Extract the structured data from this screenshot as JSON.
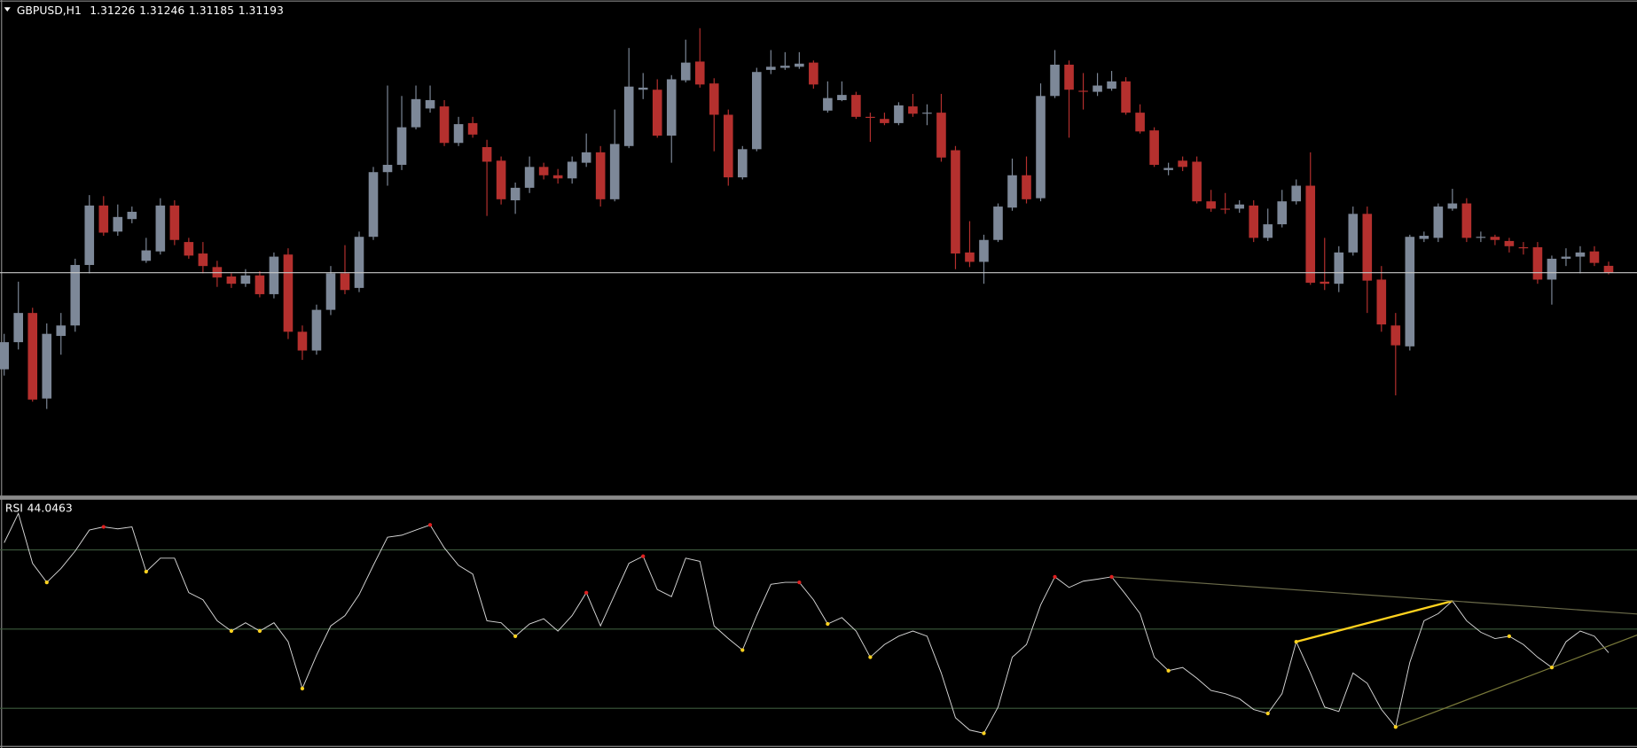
{
  "chart_data": [
    {
      "type": "candlestick",
      "title": "GBPUSD,H1",
      "up_color": "#7d8898",
      "down_color": "#b5302e",
      "bid_line_color": "#c8c8c8",
      "ylim": [
        1.30125,
        1.325
      ],
      "open": [
        1.3073,
        1.3086,
        1.31,
        1.3059,
        1.3089,
        1.3094,
        1.3123,
        1.31515,
        1.3139,
        1.3145,
        1.3125,
        1.31295,
        1.31515,
        1.3134,
        1.31285,
        1.3122,
        1.31175,
        1.3114,
        1.3118,
        1.3109,
        1.3128,
        1.3091,
        1.3082,
        1.31015,
        1.3119,
        1.3112,
        1.31365,
        1.31675,
        1.3171,
        1.3189,
        1.3198,
        1.3199,
        1.31815,
        1.3191,
        1.31795,
        1.3173,
        1.3154,
        1.316,
        1.317,
        1.3166,
        1.31645,
        1.3172,
        1.3177,
        1.31545,
        1.318,
        1.3207,
        1.3207,
        1.3185,
        1.32115,
        1.32205,
        1.321,
        1.3195,
        1.3165,
        1.31785,
        1.32165,
        1.32175,
        1.3218,
        1.322,
        1.3197,
        1.3202,
        1.32045,
        1.3194,
        1.3193,
        1.3191,
        1.3199,
        1.31955,
        1.3196,
        1.3178,
        1.3129,
        1.31245,
        1.3135,
        1.31505,
        1.3166,
        1.3155,
        1.3204,
        1.3219,
        1.32065,
        1.3206,
        1.32075,
        1.3211,
        1.3196,
        1.31875,
        1.31685,
        1.3173,
        1.31725,
        1.31535,
        1.315,
        1.315,
        1.31515,
        1.3136,
        1.31425,
        1.31535,
        1.3161,
        1.3115,
        1.3114,
        1.3129,
        1.31475,
        1.3116,
        1.3094,
        1.3084,
        1.31355,
        1.3136,
        1.315,
        1.31525,
        1.3136,
        1.31365,
        1.31345,
        1.31315,
        1.31315,
        1.3116,
        1.3126,
        1.3127,
        1.31295,
        1.31226
      ],
      "high": [
        1.309,
        1.3115,
        1.31025,
        1.3095,
        1.31,
        1.3126,
        1.31565,
        1.3156,
        1.3152,
        1.3151,
        1.3136,
        1.3155,
        1.3154,
        1.3136,
        1.3134,
        1.3125,
        1.3119,
        1.3121,
        1.312,
        1.3129,
        1.3131,
        1.3094,
        1.3104,
        1.31225,
        1.31325,
        1.3139,
        1.317,
        1.3209,
        1.3204,
        1.3209,
        1.3209,
        1.3202,
        1.3194,
        1.3194,
        1.3183,
        1.3175,
        1.31625,
        1.3175,
        1.3172,
        1.3169,
        1.3175,
        1.3186,
        1.318,
        1.31975,
        1.3227,
        1.3215,
        1.3212,
        1.3214,
        1.3231,
        1.32365,
        1.32125,
        1.31975,
        1.318,
        1.32175,
        1.3226,
        1.3225,
        1.3225,
        1.3221,
        1.3211,
        1.3211,
        1.3206,
        1.3196,
        1.3196,
        1.3201,
        1.3205,
        1.32,
        1.3205,
        1.318,
        1.3144,
        1.31375,
        1.31525,
        1.3174,
        1.3175,
        1.321,
        1.3226,
        1.3221,
        1.3215,
        1.3215,
        1.3216,
        1.3213,
        1.32,
        1.3189,
        1.3172,
        1.3175,
        1.3175,
        1.3159,
        1.31575,
        1.3154,
        1.3154,
        1.315,
        1.3159,
        1.3164,
        1.3177,
        1.3136,
        1.3132,
        1.3151,
        1.3151,
        1.31225,
        1.31,
        1.31375,
        1.3139,
        1.31525,
        1.31595,
        1.3155,
        1.3139,
        1.31375,
        1.3136,
        1.3134,
        1.3134,
        1.31275,
        1.3131,
        1.3132,
        1.3132,
        1.31246
      ],
      "low": [
        1.307,
        1.30825,
        1.30575,
        1.3054,
        1.308,
        1.3091,
        1.3119,
        1.3137,
        1.3137,
        1.3143,
        1.3124,
        1.3128,
        1.31325,
        1.3126,
        1.3119,
        1.31125,
        1.3112,
        1.31125,
        1.31075,
        1.3107,
        1.30875,
        1.30775,
        1.308,
        1.3099,
        1.3109,
        1.311,
        1.3135,
        1.3161,
        1.31685,
        1.3188,
        1.3196,
        1.318,
        1.318,
        1.3184,
        1.31465,
        1.3152,
        1.31475,
        1.31575,
        1.3164,
        1.3162,
        1.3162,
        1.317,
        1.3151,
        1.31535,
        1.3179,
        1.32025,
        1.3184,
        1.3172,
        1.32105,
        1.3208,
        1.31775,
        1.3161,
        1.3164,
        1.31775,
        1.32145,
        1.32165,
        1.3217,
        1.32075,
        1.3196,
        1.32015,
        1.3193,
        1.3182,
        1.319,
        1.319,
        1.3194,
        1.319,
        1.31725,
        1.3121,
        1.3122,
        1.3114,
        1.3134,
        1.3149,
        1.31525,
        1.31535,
        1.3203,
        1.3184,
        1.31975,
        1.3204,
        1.32065,
        1.3195,
        1.3186,
        1.317,
        1.3166,
        1.3168,
        1.31525,
        1.31485,
        1.31475,
        1.3148,
        1.3134,
        1.31345,
        1.3141,
        1.3152,
        1.31135,
        1.3111,
        1.311,
        1.31275,
        1.31,
        1.3091,
        1.30605,
        1.3082,
        1.3134,
        1.3134,
        1.3149,
        1.3134,
        1.3134,
        1.31325,
        1.3129,
        1.3128,
        1.3114,
        1.3104,
        1.31225,
        1.3119,
        1.31225,
        1.31185
      ],
      "close": [
        1.3086,
        1.31,
        1.30585,
        1.309,
        1.3094,
        1.3123,
        1.31515,
        1.31385,
        1.3146,
        1.31485,
        1.313,
        1.31515,
        1.3135,
        1.31275,
        1.31225,
        1.3117,
        1.3114,
        1.3118,
        1.3109,
        1.3127,
        1.3091,
        1.3082,
        1.31015,
        1.3119,
        1.3111,
        1.31365,
        1.31675,
        1.3171,
        1.3189,
        1.32025,
        1.3202,
        1.31815,
        1.31905,
        1.31855,
        1.31725,
        1.31545,
        1.316,
        1.317,
        1.3166,
        1.31645,
        1.31725,
        1.3177,
        1.31545,
        1.3181,
        1.32085,
        1.3208,
        1.3185,
        1.3212,
        1.322,
        1.32095,
        1.3195,
        1.3165,
        1.31785,
        1.32155,
        1.3218,
        1.32185,
        1.32195,
        1.32095,
        1.3203,
        1.32045,
        1.3194,
        1.31935,
        1.3191,
        1.31995,
        1.31955,
        1.3196,
        1.31745,
        1.31285,
        1.31245,
        1.3135,
        1.3151,
        1.3166,
        1.31545,
        1.3204,
        1.3219,
        1.3207,
        1.3206,
        1.3209,
        1.3211,
        1.3196,
        1.3187,
        1.3171,
        1.31695,
        1.317,
        1.31535,
        1.315,
        1.31495,
        1.3152,
        1.3136,
        1.31425,
        1.31535,
        1.3161,
        1.31145,
        1.3114,
        1.3129,
        1.31475,
        1.31155,
        1.30945,
        1.30845,
        1.31365,
        1.3137,
        1.3151,
        1.31525,
        1.3136,
        1.31365,
        1.3135,
        1.3132,
        1.3131,
        1.3116,
        1.3126,
        1.3127,
        1.3129,
        1.3124,
        1.31193
      ]
    },
    {
      "type": "line",
      "title": "RSI",
      "color": "#d8d8d8",
      "level_color": "#3c5a3c",
      "ylim": [
        20.5,
        82.4
      ],
      "levels": [
        30,
        50,
        70
      ],
      "values": [
        71.8,
        79.2,
        66.6,
        61.8,
        65.3,
        69.7,
        75.0,
        75.8,
        75.3,
        75.8,
        64.5,
        67.9,
        67.9,
        59.2,
        57.4,
        52.1,
        49.5,
        51.6,
        49.5,
        51.6,
        46.8,
        35.0,
        43.4,
        50.8,
        53.4,
        58.7,
        66.1,
        73.2,
        73.7,
        75.0,
        76.3,
        70.5,
        66.1,
        63.9,
        52.1,
        51.6,
        48.2,
        51.3,
        52.6,
        49.5,
        53.4,
        59.2,
        50.8,
        58.7,
        66.6,
        68.4,
        60.0,
        58.2,
        67.9,
        67.1,
        50.8,
        47.6,
        44.7,
        53.4,
        61.3,
        61.8,
        61.8,
        57.4,
        51.3,
        52.9,
        49.5,
        42.9,
        46.1,
        48.2,
        49.5,
        48.2,
        38.9,
        27.6,
        24.5,
        23.7,
        30.3,
        42.9,
        46.1,
        56.1,
        63.2,
        60.5,
        62.1,
        62.6,
        63.2,
        58.7,
        53.9,
        42.9,
        39.5,
        40.3,
        37.6,
        34.5,
        33.7,
        32.4,
        29.7,
        28.7,
        33.7,
        46.8,
        38.9,
        30.3,
        29.2,
        38.9,
        36.3,
        29.7,
        25.3,
        41.6,
        52.1,
        53.9,
        57.1,
        52.1,
        49.2,
        47.6,
        48.2,
        46.1,
        42.9,
        40.3,
        46.8,
        49.5,
        48.2,
        44.0463
      ],
      "peak_color": "#e02020",
      "trough_color": "#ffd21e",
      "peaks": [
        7,
        30,
        41,
        45,
        56,
        74,
        78
      ],
      "troughs": [
        3,
        10,
        16,
        18,
        21,
        36,
        52,
        58,
        61,
        69,
        82,
        89,
        91,
        98,
        106,
        109
      ],
      "trendlines": [
        {
          "from": 91,
          "to": 102,
          "color": "#ffd21e",
          "width": 2,
          "extend": false
        },
        {
          "from": 78,
          "to": 102,
          "color": "#6b6b4a",
          "width": 1,
          "extend": true
        },
        {
          "from": 98,
          "to": 109,
          "color": "#7a7a3a",
          "width": 1,
          "extend": true
        }
      ]
    }
  ]
}
